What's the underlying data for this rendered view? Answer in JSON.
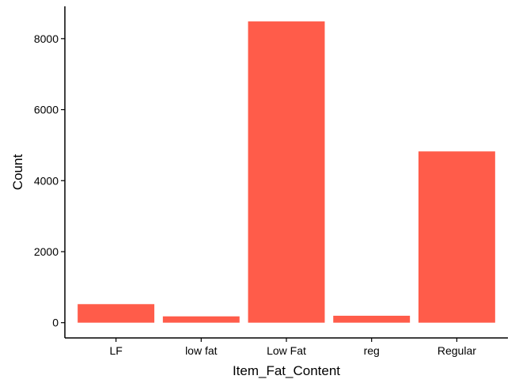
{
  "chart_data": {
    "type": "bar",
    "title": "",
    "xlabel": "Item_Fat_Content",
    "ylabel": "Count",
    "categories": [
      "LF",
      "low fat",
      "Low Fat",
      "reg",
      "Regular"
    ],
    "values": [
      522,
      178,
      8485,
      195,
      4824
    ],
    "ylim": [
      -430,
      8910
    ],
    "yticks": [
      0,
      2000,
      4000,
      6000,
      8000
    ],
    "ytick_labels": [
      "0",
      "2000",
      "4000",
      "6000",
      "8000"
    ],
    "grid": false,
    "legend": "none",
    "bar_color": "#ff5c4a"
  }
}
